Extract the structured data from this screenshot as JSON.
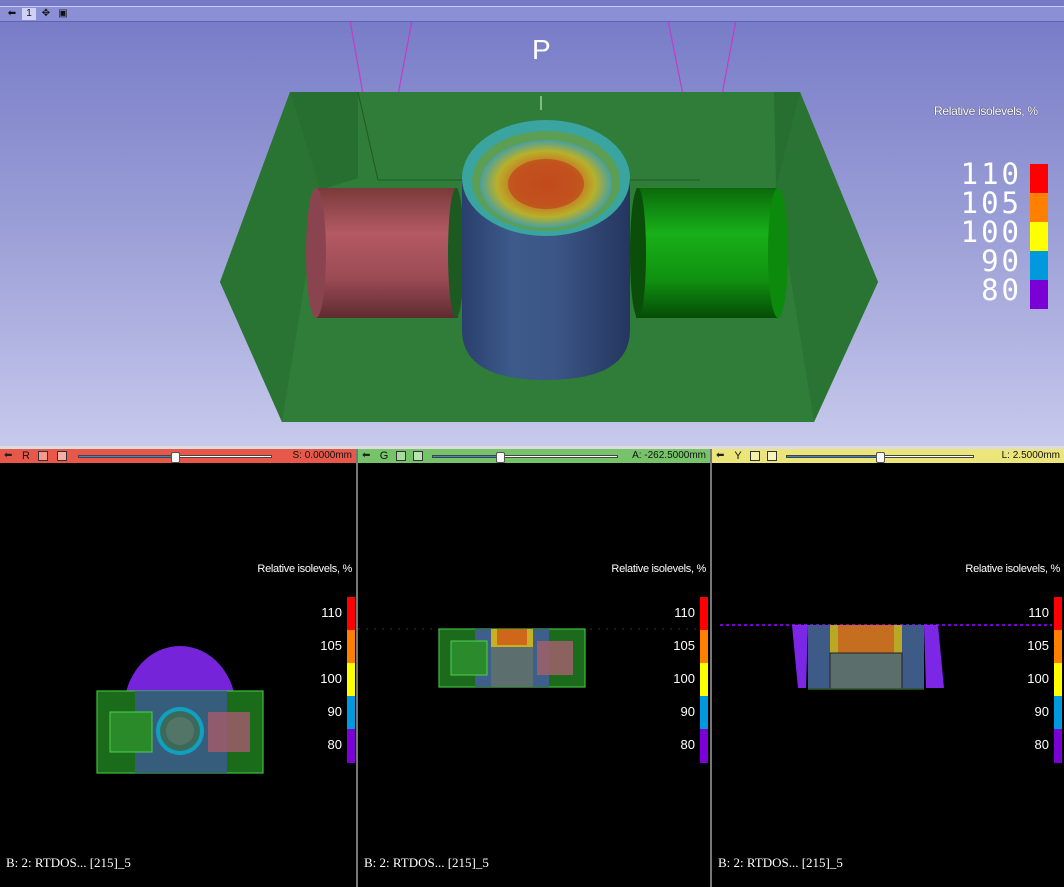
{
  "view3d": {
    "layout_number": "1",
    "orientation_marker": "P",
    "legend": {
      "title": "Relative isolevels, %",
      "labels": [
        "110",
        "105",
        "100",
        "90",
        "80"
      ],
      "colors": [
        "#ff0000",
        "#ff8000",
        "#ffff00",
        "#0099dd",
        "#7a00d6"
      ]
    }
  },
  "slices": [
    {
      "letter": "R",
      "offset": "S: 0.0000mm",
      "bar_color": "#e8584a",
      "slider_value": 0.5,
      "caption": "B: 2: RTDOS... [215]_5",
      "legend_title": "Relative isolevels, %",
      "legend_labels": [
        "110",
        "105",
        "100",
        "90",
        "80"
      ]
    },
    {
      "letter": "G",
      "offset": "A: -262.5000mm",
      "bar_color": "#76c36a",
      "slider_value": 0.36,
      "caption": "B: 2: RTDOS... [215]_5",
      "legend_title": "Relative isolevels, %",
      "legend_labels": [
        "110",
        "105",
        "100",
        "90",
        "80"
      ]
    },
    {
      "letter": "Y",
      "offset": "L: 2.5000mm",
      "bar_color": "#ece57a",
      "slider_value": 0.5,
      "caption": "B: 2: RTDOS... [215]_5",
      "legend_title": "Relative isolevels, %",
      "legend_labels": [
        "110",
        "105",
        "100",
        "90",
        "80"
      ]
    }
  ]
}
